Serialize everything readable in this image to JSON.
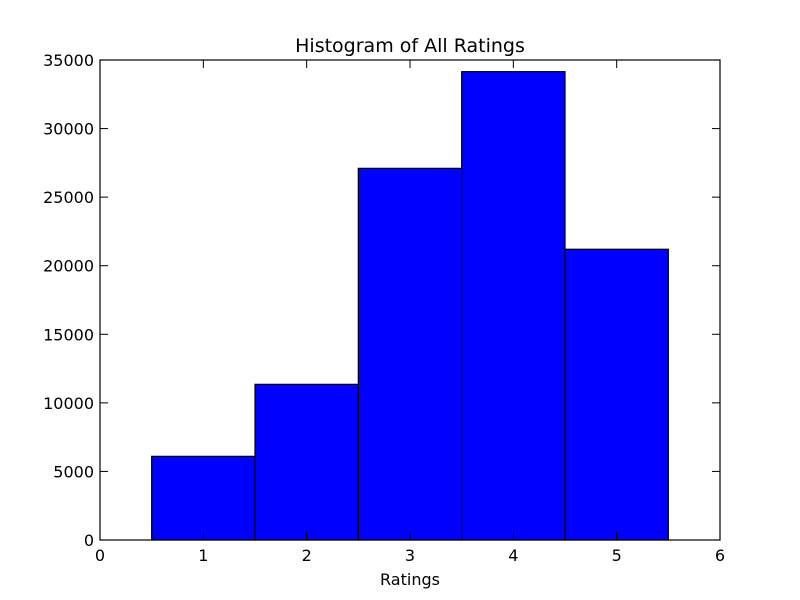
{
  "chart_data": {
    "type": "bar",
    "title": "Histogram of All Ratings",
    "xlabel": "Ratings",
    "ylabel": "",
    "xlim": [
      0,
      6
    ],
    "ylim": [
      0,
      35000
    ],
    "xticks": [
      0,
      1,
      2,
      3,
      4,
      5,
      6
    ],
    "yticks": [
      0,
      5000,
      10000,
      15000,
      20000,
      25000,
      30000,
      35000
    ],
    "bin_width": 1,
    "bins": [
      {
        "center": 1,
        "value": 6100
      },
      {
        "center": 2,
        "value": 11350
      },
      {
        "center": 3,
        "value": 27100
      },
      {
        "center": 4,
        "value": 34150
      },
      {
        "center": 5,
        "value": 21200
      }
    ],
    "bar_color": "#0000ff",
    "edge_color": "#000000",
    "grid": false,
    "legend": "none"
  }
}
